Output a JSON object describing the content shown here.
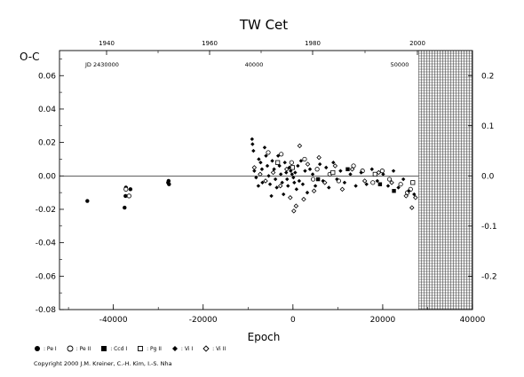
{
  "chart_data": {
    "type": "scatter",
    "title": "TW Cet",
    "ylabel": "O-C",
    "xlabel": "Epoch",
    "xlim": [
      -52000,
      40000
    ],
    "ylim": [
      -0.08,
      0.075
    ],
    "x_ticks": [
      -40000,
      -20000,
      0,
      20000,
      40000
    ],
    "x_tick_labels": [
      "-40000",
      "-20000",
      "0",
      "20000",
      "40000"
    ],
    "y_ticks": [
      -0.08,
      -0.06,
      -0.04,
      -0.02,
      0.0,
      0.02,
      0.04,
      0.06
    ],
    "y_tick_labels": [
      "-0.08",
      "-0.06",
      "-0.04",
      "-0.02",
      "0.00",
      "0.02",
      "0.04",
      "0.06"
    ],
    "top_axis": {
      "year_ticks": [
        "1940",
        "1960",
        "1980",
        "2000"
      ],
      "jd_label": "JD 2430000",
      "jd_ticks": [
        "40000",
        "50000"
      ]
    },
    "right_axis": {
      "ticks": [
        0.2,
        0.1,
        0.0,
        -0.1,
        -0.2
      ],
      "tick_labels": [
        "0.2",
        "0.1",
        "0.0",
        "-0.1",
        "-0.2"
      ]
    },
    "shaded_region_start": 28000,
    "zero_line": 0.0,
    "series": [
      {
        "name": "Pe I",
        "marker": "filled-circle",
        "points": [
          [
            -45800,
            -0.015
          ],
          [
            -37500,
            -0.019
          ],
          [
            -37300,
            -0.012
          ],
          [
            -37200,
            -0.007
          ],
          [
            -36200,
            -0.008
          ],
          [
            -27800,
            -0.004
          ],
          [
            -27700,
            -0.003
          ],
          [
            -27600,
            -0.005
          ]
        ]
      },
      {
        "name": "Pe II",
        "marker": "open-circle",
        "points": [
          [
            -37200,
            -0.008
          ],
          [
            -36500,
            -0.012
          ],
          [
            -5500,
            0.014
          ],
          [
            -2600,
            0.013
          ],
          [
            -300,
            0.008
          ],
          [
            2600,
            0.01
          ],
          [
            4500,
            -0.002
          ],
          [
            5400,
            0.004
          ],
          [
            8200,
            0.001
          ],
          [
            10200,
            -0.003
          ],
          [
            13500,
            0.006
          ],
          [
            15500,
            0.003
          ],
          [
            17800,
            -0.004
          ],
          [
            19900,
            0.003
          ],
          [
            21500,
            -0.002
          ],
          [
            24000,
            -0.005
          ],
          [
            25500,
            -0.01
          ],
          [
            26200,
            -0.008
          ]
        ]
      },
      {
        "name": "Ccd I",
        "marker": "filled-square",
        "points": [
          [
            5600,
            -0.002
          ],
          [
            12200,
            0.004
          ],
          [
            19400,
            -0.005
          ],
          [
            22500,
            -0.009
          ]
        ]
      },
      {
        "name": "Pg II",
        "marker": "open-square",
        "points": [
          [
            -3400,
            0.008
          ],
          [
            -100,
            0.005
          ],
          [
            8900,
            0.002
          ],
          [
            18300,
            0.001
          ],
          [
            26700,
            -0.004
          ]
        ]
      },
      {
        "name": "Vi I",
        "marker": "filled-diamond",
        "points": [
          [
            -9100,
            0.022
          ],
          [
            -9000,
            0.019
          ],
          [
            -8800,
            0.015
          ],
          [
            -8600,
            0.003
          ],
          [
            -8200,
            -0.001
          ],
          [
            -7700,
            -0.006
          ],
          [
            -7600,
            0.01
          ],
          [
            -7200,
            0.008
          ],
          [
            -6900,
            0.004
          ],
          [
            -6800,
            -0.004
          ],
          [
            -6300,
            0.017
          ],
          [
            -6000,
            0.012
          ],
          [
            -5700,
            0.006
          ],
          [
            -5400,
            0.0
          ],
          [
            -5100,
            -0.005
          ],
          [
            -4800,
            -0.012
          ],
          [
            -4600,
            0.009
          ],
          [
            -4200,
            0.004
          ],
          [
            -3900,
            -0.002
          ],
          [
            -3600,
            -0.007
          ],
          [
            -3300,
            0.012
          ],
          [
            -3000,
            0.006
          ],
          [
            -2700,
            0.001
          ],
          [
            -2400,
            -0.004
          ],
          [
            -2100,
            -0.011
          ],
          [
            -1800,
            0.008
          ],
          [
            -1500,
            0.002
          ],
          [
            -1300,
            -0.002
          ],
          [
            -1100,
            -0.006
          ],
          [
            -800,
            0.005
          ],
          [
            -500,
            0.003
          ],
          [
            -200,
            0.001
          ],
          [
            100,
            -0.001
          ],
          [
            300,
            -0.004
          ],
          [
            500,
            0.002
          ],
          [
            800,
            -0.008
          ],
          [
            1100,
            0.006
          ],
          [
            1400,
            -0.003
          ],
          [
            1800,
            0.009
          ],
          [
            2200,
            -0.005
          ],
          [
            2700,
            0.003
          ],
          [
            3200,
            -0.01
          ],
          [
            3800,
            0.004
          ],
          [
            4400,
            0.001
          ],
          [
            5000,
            -0.006
          ],
          [
            6000,
            0.007
          ],
          [
            6700,
            -0.003
          ],
          [
            7400,
            0.005
          ],
          [
            8000,
            -0.007
          ],
          [
            9000,
            0.008
          ],
          [
            9800,
            -0.002
          ],
          [
            10600,
            0.003
          ],
          [
            11500,
            -0.004
          ],
          [
            12800,
            0.001
          ],
          [
            14000,
            -0.006
          ],
          [
            15200,
            0.002
          ],
          [
            16400,
            -0.005
          ],
          [
            17600,
            0.004
          ],
          [
            18800,
            -0.003
          ],
          [
            20100,
            0.001
          ],
          [
            21200,
            -0.006
          ],
          [
            22400,
            0.003
          ],
          [
            23500,
            -0.007
          ],
          [
            24600,
            -0.002
          ],
          [
            25800,
            -0.009
          ],
          [
            27000,
            -0.011
          ]
        ]
      },
      {
        "name": "Vi II",
        "marker": "open-diamond",
        "points": [
          [
            -8600,
            0.005
          ],
          [
            -7300,
            0.001
          ],
          [
            -6100,
            -0.003
          ],
          [
            -4400,
            0.002
          ],
          [
            -2800,
            -0.006
          ],
          [
            -1400,
            0.004
          ],
          [
            -600,
            -0.013
          ],
          [
            200,
            -0.021
          ],
          [
            700,
            -0.018
          ],
          [
            1500,
            0.018
          ],
          [
            2400,
            -0.014
          ],
          [
            3300,
            0.007
          ],
          [
            4700,
            -0.009
          ],
          [
            5800,
            0.011
          ],
          [
            7100,
            -0.004
          ],
          [
            9400,
            0.006
          ],
          [
            11000,
            -0.008
          ],
          [
            13200,
            0.004
          ],
          [
            16000,
            -0.003
          ],
          [
            19100,
            0.002
          ],
          [
            22000,
            -0.004
          ],
          [
            25200,
            -0.012
          ],
          [
            26500,
            -0.019
          ],
          [
            27300,
            -0.013
          ]
        ]
      }
    ]
  },
  "legend": {
    "items": [
      {
        "label": ": Pe I",
        "marker": "filled-circle"
      },
      {
        "label": ": Pe II",
        "marker": "open-circle"
      },
      {
        "label": ": Ccd I",
        "marker": "filled-square"
      },
      {
        "label": ": Pg II",
        "marker": "open-square"
      },
      {
        "label": ": Vi I",
        "marker": "filled-diamond"
      },
      {
        "label": ": Vi II",
        "marker": "open-diamond"
      }
    ]
  },
  "copyright": "Copyright 2000 J.M. Kreiner, C.-H. Kim, I.-S. Nha"
}
